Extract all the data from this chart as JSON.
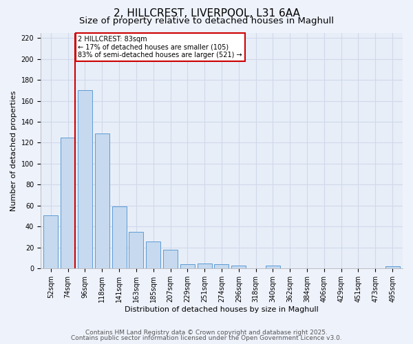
{
  "title": "2, HILLCREST, LIVERPOOL, L31 6AA",
  "subtitle": "Size of property relative to detached houses in Maghull",
  "xlabel": "Distribution of detached houses by size in Maghull",
  "ylabel": "Number of detached properties",
  "bar_labels": [
    "52sqm",
    "74sqm",
    "96sqm",
    "118sqm",
    "141sqm",
    "163sqm",
    "185sqm",
    "207sqm",
    "229sqm",
    "251sqm",
    "274sqm",
    "296sqm",
    "318sqm",
    "340sqm",
    "362sqm",
    "384sqm",
    "406sqm",
    "429sqm",
    "451sqm",
    "473sqm",
    "495sqm"
  ],
  "bar_values": [
    51,
    125,
    170,
    129,
    59,
    35,
    26,
    18,
    4,
    5,
    4,
    3,
    0,
    3,
    0,
    0,
    0,
    0,
    0,
    0,
    2
  ],
  "bar_color": "#c6d9ee",
  "bar_edge_color": "#5b9bd5",
  "vline_x_index": 1,
  "vline_color": "#cc0000",
  "ylim": [
    0,
    225
  ],
  "yticks": [
    0,
    20,
    40,
    60,
    80,
    100,
    120,
    140,
    160,
    180,
    200,
    220
  ],
  "annotation_title": "2 HILLCREST: 83sqm",
  "annotation_line1": "← 17% of detached houses are smaller (105)",
  "annotation_line2": "83% of semi-detached houses are larger (521) →",
  "annotation_box_color": "#ffffff",
  "annotation_box_edge": "#cc0000",
  "footer1": "Contains HM Land Registry data © Crown copyright and database right 2025.",
  "footer2": "Contains public sector information licensed under the Open Government Licence v3.0.",
  "bg_color": "#eef2fb",
  "grid_color": "#d0d8ea",
  "plot_bg_color": "#e8eef8",
  "title_fontsize": 11,
  "subtitle_fontsize": 9.5,
  "label_fontsize": 8,
  "tick_fontsize": 7,
  "footer_fontsize": 6.5
}
